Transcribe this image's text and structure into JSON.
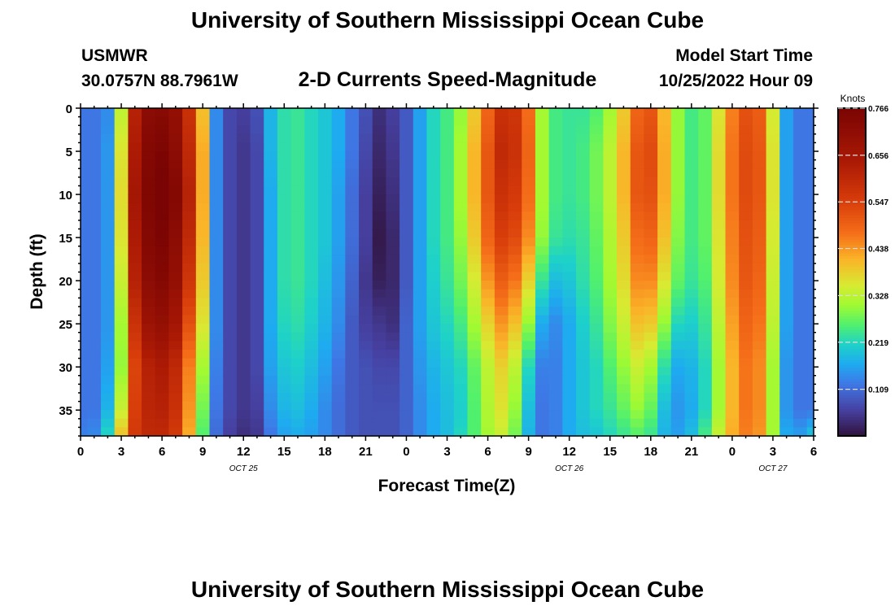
{
  "header": {
    "title": "University of Southern Mississippi Ocean Cube",
    "station": "USMWR",
    "coords": "30.0757N  88.7961W",
    "subtitle": "2-D Currents Speed-Magnitude",
    "model_start_label": "Model Start Time",
    "model_start_value": "10/25/2022 Hour 09"
  },
  "footer": {
    "title": "University of Southern Mississippi Ocean Cube"
  },
  "chart_data": {
    "type": "heatmap",
    "title": "2-D Currents Speed-Magnitude",
    "xlabel": "Forecast Time(Z)",
    "ylabel": "Depth (ft)",
    "x_unit": "hours since 10/25/2022 00Z",
    "x_range": [
      0,
      54
    ],
    "y_range": [
      0,
      38
    ],
    "y_inverted": true,
    "x_ticks": [
      0,
      3,
      6,
      9,
      12,
      15,
      18,
      21,
      24,
      27,
      30,
      33,
      36,
      39,
      42,
      45,
      48,
      51,
      54
    ],
    "x_tick_labels": [
      "0",
      "3",
      "6",
      "9",
      "12",
      "15",
      "18",
      "21",
      "0",
      "3",
      "6",
      "9",
      "12",
      "15",
      "18",
      "21",
      "0",
      "3",
      "6"
    ],
    "y_ticks": [
      0,
      5,
      10,
      15,
      20,
      25,
      30,
      35
    ],
    "y_tick_labels": [
      "0",
      "5",
      "10",
      "15",
      "20",
      "25",
      "30",
      "35"
    ],
    "date_labels": [
      {
        "x": 12,
        "text": "OCT 25"
      },
      {
        "x": 36,
        "text": "OCT 26"
      },
      {
        "x": 51,
        "text": "OCT 27"
      }
    ],
    "colorbar": {
      "title": "Knots",
      "min": 0,
      "max": 0.766,
      "tick_values": [
        0.109,
        0.219,
        0.328,
        0.438,
        0.547,
        0.656,
        0.766
      ],
      "tick_labels": [
        "0.109",
        "0.219",
        "0.328",
        "0.438",
        "0.547",
        "0.656",
        "0.766"
      ]
    },
    "series": [
      {
        "name": "0",
        "values": [
          0.12,
          0.12,
          0.14,
          0.33,
          0.62,
          0.72,
          0.73,
          0.7,
          0.58,
          0.4,
          0.14,
          0.07,
          0.06,
          0.08,
          0.18,
          0.23,
          0.24,
          0.22,
          0.2,
          0.17,
          0.12,
          0.08,
          0.04,
          0.06,
          0.09,
          0.16,
          0.22,
          0.25,
          0.3,
          0.39,
          0.49,
          0.58,
          0.57,
          0.48,
          0.31,
          0.25,
          0.24,
          0.24,
          0.26,
          0.31,
          0.39,
          0.49,
          0.51,
          0.41,
          0.3,
          0.25,
          0.27,
          0.36,
          0.46,
          0.52,
          0.5,
          0.35,
          0.16,
          0.12,
          0.12
        ]
      },
      {
        "name": "5",
        "values": [
          0.12,
          0.12,
          0.15,
          0.36,
          0.64,
          0.74,
          0.76,
          0.72,
          0.6,
          0.42,
          0.14,
          0.07,
          0.05,
          0.07,
          0.18,
          0.23,
          0.24,
          0.22,
          0.2,
          0.17,
          0.12,
          0.07,
          0.03,
          0.05,
          0.09,
          0.16,
          0.22,
          0.25,
          0.31,
          0.41,
          0.51,
          0.6,
          0.58,
          0.49,
          0.31,
          0.25,
          0.24,
          0.25,
          0.28,
          0.33,
          0.41,
          0.51,
          0.53,
          0.42,
          0.3,
          0.25,
          0.27,
          0.37,
          0.47,
          0.53,
          0.51,
          0.36,
          0.16,
          0.12,
          0.12
        ]
      },
      {
        "name": "10",
        "values": [
          0.12,
          0.12,
          0.15,
          0.37,
          0.66,
          0.75,
          0.77,
          0.74,
          0.62,
          0.42,
          0.14,
          0.07,
          0.05,
          0.07,
          0.17,
          0.23,
          0.24,
          0.22,
          0.2,
          0.16,
          0.11,
          0.06,
          0.02,
          0.04,
          0.09,
          0.16,
          0.22,
          0.25,
          0.31,
          0.41,
          0.51,
          0.58,
          0.56,
          0.48,
          0.31,
          0.25,
          0.24,
          0.25,
          0.28,
          0.33,
          0.41,
          0.51,
          0.52,
          0.42,
          0.3,
          0.25,
          0.27,
          0.37,
          0.47,
          0.53,
          0.51,
          0.36,
          0.16,
          0.12,
          0.12
        ]
      },
      {
        "name": "15",
        "values": [
          0.12,
          0.12,
          0.15,
          0.36,
          0.64,
          0.74,
          0.76,
          0.72,
          0.6,
          0.41,
          0.14,
          0.07,
          0.05,
          0.07,
          0.17,
          0.23,
          0.24,
          0.22,
          0.2,
          0.16,
          0.11,
          0.06,
          0.01,
          0.03,
          0.09,
          0.16,
          0.22,
          0.25,
          0.3,
          0.39,
          0.49,
          0.55,
          0.53,
          0.45,
          0.3,
          0.24,
          0.23,
          0.24,
          0.27,
          0.32,
          0.39,
          0.48,
          0.49,
          0.4,
          0.29,
          0.25,
          0.27,
          0.36,
          0.46,
          0.52,
          0.5,
          0.35,
          0.16,
          0.12,
          0.12
        ]
      },
      {
        "name": "20",
        "values": [
          0.12,
          0.12,
          0.15,
          0.34,
          0.62,
          0.72,
          0.74,
          0.7,
          0.57,
          0.39,
          0.14,
          0.07,
          0.05,
          0.07,
          0.17,
          0.23,
          0.24,
          0.22,
          0.19,
          0.15,
          0.1,
          0.05,
          0.02,
          0.03,
          0.09,
          0.16,
          0.21,
          0.24,
          0.28,
          0.35,
          0.44,
          0.5,
          0.47,
          0.38,
          0.24,
          0.19,
          0.2,
          0.23,
          0.26,
          0.31,
          0.37,
          0.45,
          0.45,
          0.36,
          0.27,
          0.24,
          0.26,
          0.35,
          0.45,
          0.51,
          0.49,
          0.34,
          0.16,
          0.12,
          0.12
        ]
      },
      {
        "name": "25",
        "values": [
          0.12,
          0.12,
          0.15,
          0.31,
          0.58,
          0.68,
          0.7,
          0.66,
          0.52,
          0.36,
          0.14,
          0.07,
          0.05,
          0.07,
          0.17,
          0.22,
          0.23,
          0.21,
          0.18,
          0.14,
          0.09,
          0.06,
          0.05,
          0.04,
          0.1,
          0.16,
          0.2,
          0.22,
          0.25,
          0.31,
          0.38,
          0.44,
          0.4,
          0.3,
          0.17,
          0.14,
          0.17,
          0.21,
          0.24,
          0.29,
          0.34,
          0.4,
          0.39,
          0.3,
          0.22,
          0.21,
          0.24,
          0.33,
          0.43,
          0.49,
          0.47,
          0.33,
          0.16,
          0.12,
          0.12
        ]
      },
      {
        "name": "30",
        "values": [
          0.12,
          0.12,
          0.16,
          0.3,
          0.54,
          0.62,
          0.64,
          0.6,
          0.46,
          0.31,
          0.13,
          0.07,
          0.05,
          0.07,
          0.16,
          0.2,
          0.21,
          0.19,
          0.16,
          0.12,
          0.09,
          0.08,
          0.07,
          0.07,
          0.1,
          0.15,
          0.18,
          0.2,
          0.22,
          0.27,
          0.33,
          0.38,
          0.33,
          0.22,
          0.13,
          0.13,
          0.17,
          0.2,
          0.22,
          0.26,
          0.3,
          0.34,
          0.31,
          0.23,
          0.17,
          0.18,
          0.22,
          0.31,
          0.41,
          0.47,
          0.45,
          0.31,
          0.15,
          0.12,
          0.12
        ]
      },
      {
        "name": "35",
        "values": [
          0.12,
          0.12,
          0.18,
          0.34,
          0.55,
          0.61,
          0.62,
          0.58,
          0.44,
          0.28,
          0.12,
          0.07,
          0.05,
          0.06,
          0.14,
          0.18,
          0.19,
          0.17,
          0.14,
          0.11,
          0.09,
          0.08,
          0.08,
          0.08,
          0.1,
          0.14,
          0.17,
          0.19,
          0.21,
          0.26,
          0.32,
          0.36,
          0.3,
          0.19,
          0.12,
          0.13,
          0.17,
          0.2,
          0.22,
          0.24,
          0.27,
          0.3,
          0.27,
          0.19,
          0.15,
          0.17,
          0.22,
          0.31,
          0.41,
          0.47,
          0.45,
          0.31,
          0.15,
          0.12,
          0.12
        ]
      },
      {
        "name": "38",
        "values": [
          0.13,
          0.14,
          0.22,
          0.4,
          0.56,
          0.6,
          0.6,
          0.56,
          0.42,
          0.26,
          0.11,
          0.06,
          0.04,
          0.05,
          0.12,
          0.16,
          0.17,
          0.16,
          0.14,
          0.11,
          0.09,
          0.08,
          0.08,
          0.08,
          0.1,
          0.14,
          0.17,
          0.19,
          0.22,
          0.26,
          0.31,
          0.34,
          0.28,
          0.18,
          0.12,
          0.13,
          0.17,
          0.19,
          0.2,
          0.22,
          0.24,
          0.26,
          0.24,
          0.18,
          0.16,
          0.19,
          0.25,
          0.34,
          0.42,
          0.46,
          0.44,
          0.31,
          0.17,
          0.16,
          0.2
        ]
      }
    ],
    "rows_depth": [
      0,
      5,
      10,
      15,
      20,
      25,
      30,
      35,
      38
    ],
    "x_step_hours": 1
  }
}
